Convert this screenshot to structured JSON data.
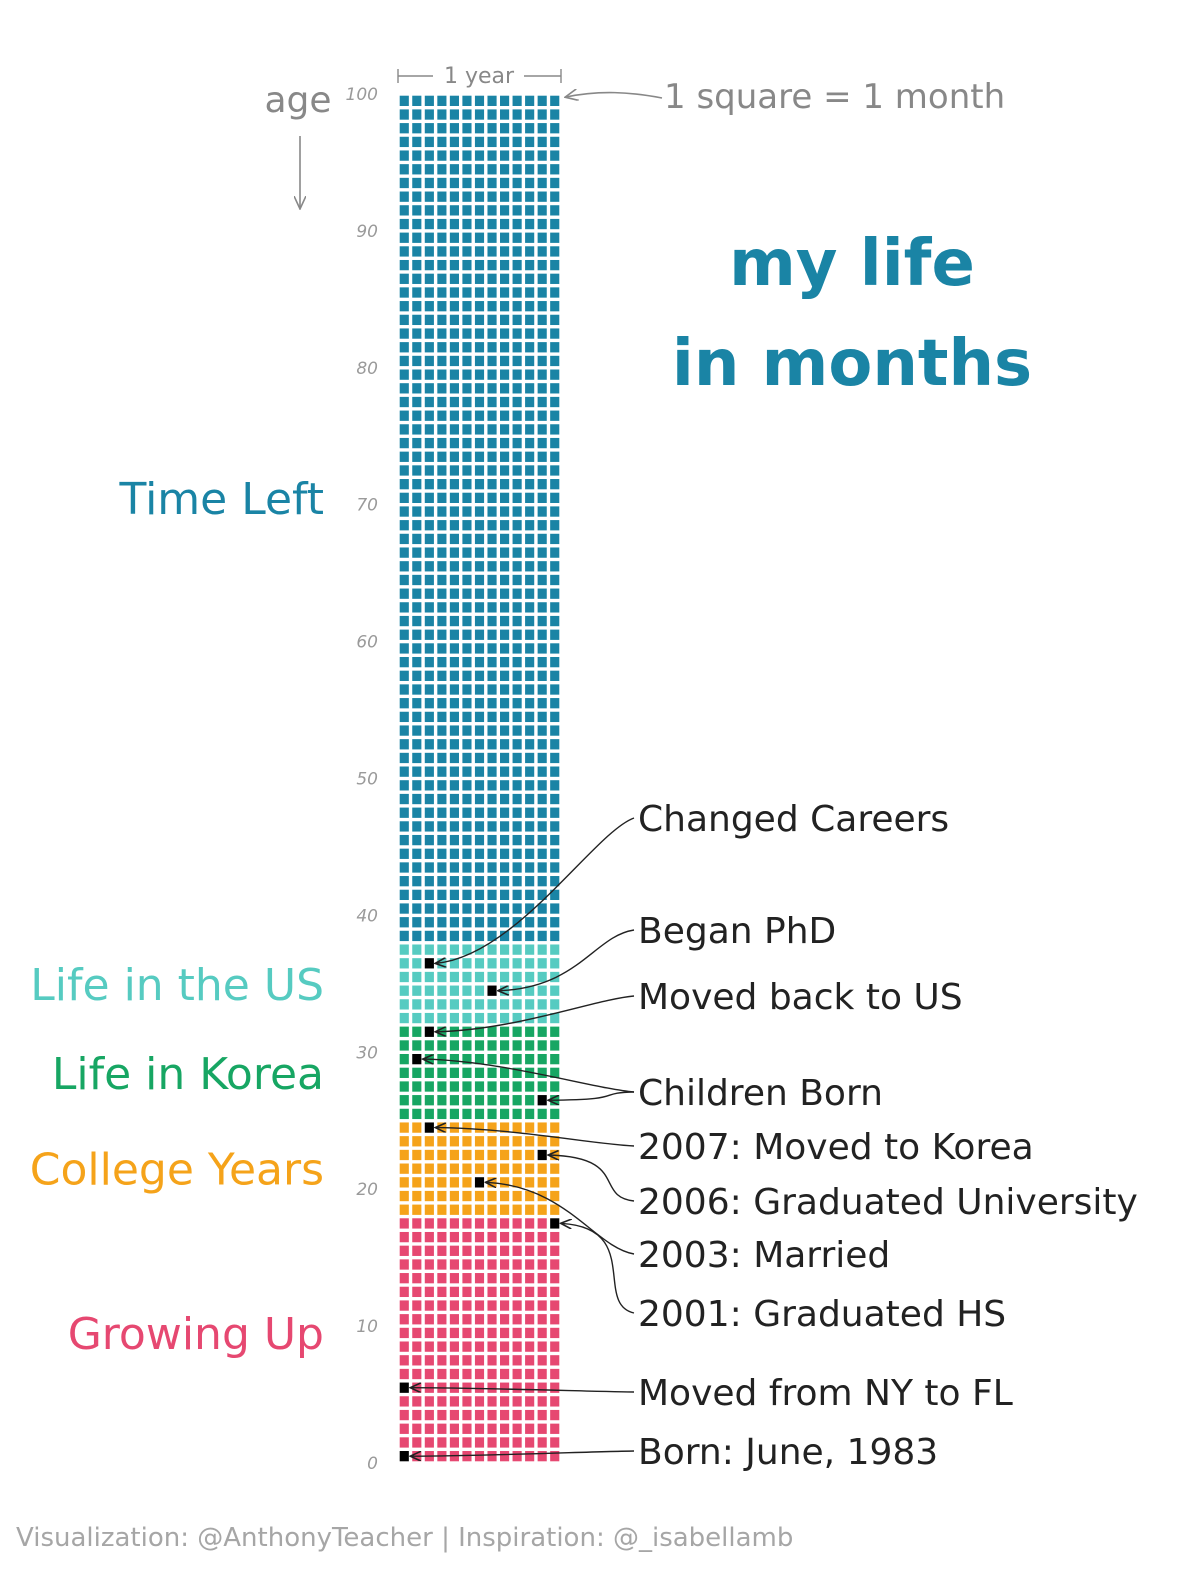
{
  "title_lines": [
    "my life",
    "in months"
  ],
  "age_label": "age",
  "year_label": "1 year",
  "square_note": "1 square = 1 month",
  "footer": "Visualization: @AnthonyTeacher  |  Inspiration: @_isabellamb",
  "chart_data": {
    "type": "waffle",
    "unit": "month",
    "columns_per_row": 12,
    "rows": 100,
    "yticks": [
      0,
      10,
      20,
      30,
      40,
      50,
      60,
      70,
      80,
      90,
      100
    ],
    "phases": [
      {
        "name": "Growing Up",
        "start_age": 0,
        "end_age": 18,
        "color": "#e64871"
      },
      {
        "name": "College Years",
        "start_age": 18,
        "end_age": 25,
        "color": "#f5a31a"
      },
      {
        "name": "Life in Korea",
        "start_age": 25,
        "end_age": 32,
        "color": "#17a663"
      },
      {
        "name": "Life in the US",
        "start_age": 32,
        "end_age": 38,
        "color": "#56cbc1"
      },
      {
        "name": "Time Left",
        "start_age": 38,
        "end_age": 100,
        "color": "#1a84a5"
      }
    ],
    "events": [
      {
        "label": "Changed Careers",
        "row": 36,
        "col": 2
      },
      {
        "label": "Began PhD",
        "row": 34,
        "col": 7
      },
      {
        "label": "Moved back to US",
        "row": 31,
        "col": 2
      },
      {
        "label": "Children Born",
        "row": 29,
        "col": 1
      },
      {
        "label": "Children Born",
        "row": 26,
        "col": 11
      },
      {
        "label": "2007: Moved to Korea",
        "row": 24,
        "col": 2
      },
      {
        "label": "2006: Graduated University",
        "row": 22,
        "col": 11
      },
      {
        "label": "2003: Married",
        "row": 20,
        "col": 6
      },
      {
        "label": "2001: Graduated HS",
        "row": 17,
        "col": 12
      },
      {
        "label": "Moved from NY to FL",
        "row": 5,
        "col": 0
      },
      {
        "label": "Born: June, 1983",
        "row": 0,
        "col": 0
      }
    ],
    "annotations": [
      "Changed Careers",
      "Began PhD",
      "Moved back to US",
      "Children Born",
      "2007: Moved to Korea",
      "2006: Graduated University",
      "2003: Married",
      "2001: Graduated HS",
      "Moved from NY to FL",
      "Born: June, 1983"
    ]
  }
}
